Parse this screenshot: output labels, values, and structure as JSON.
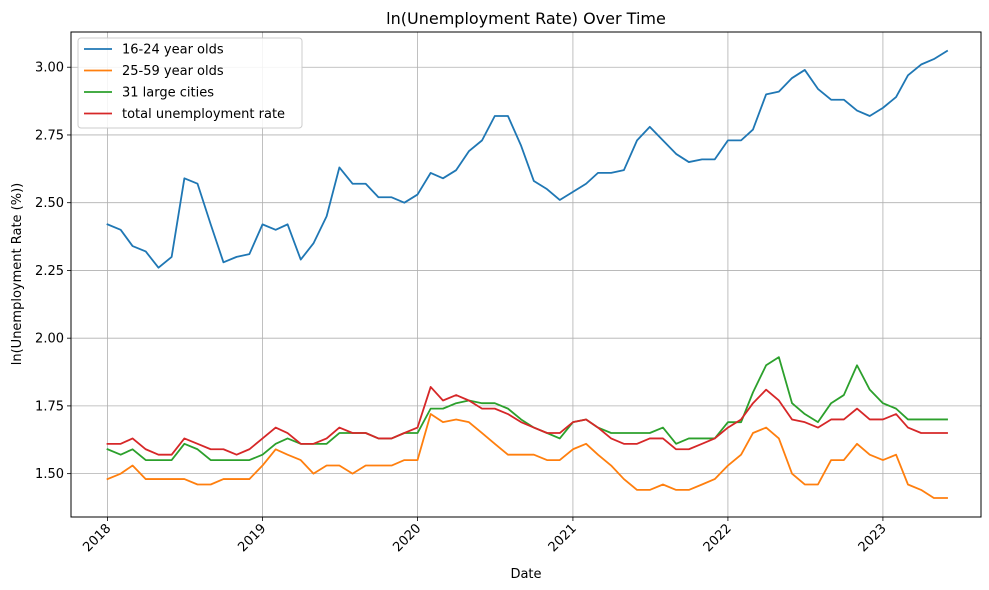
{
  "chart_data": {
    "type": "line",
    "title": "ln(Unemployment Rate) Over Time",
    "xlabel": "Date",
    "ylabel": "ln(Unemployment Rate (%))",
    "x_axis_type": "date",
    "xlim": [
      "2017-10-07",
      "2023-08-20"
    ],
    "ylim": [
      1.34,
      3.13
    ],
    "x_ticks": [
      "2018",
      "2019",
      "2020",
      "2021",
      "2022",
      "2023"
    ],
    "x_tick_rotation": 45,
    "y_ticks": [
      "1.50",
      "1.75",
      "2.00",
      "2.25",
      "2.50",
      "2.75",
      "3.00"
    ],
    "grid": true,
    "legend_position": "top-left",
    "x": [
      "2018-01",
      "2018-02",
      "2018-03",
      "2018-04",
      "2018-05",
      "2018-06",
      "2018-07",
      "2018-08",
      "2018-09",
      "2018-10",
      "2018-11",
      "2018-12",
      "2019-01",
      "2019-02",
      "2019-03",
      "2019-04",
      "2019-05",
      "2019-06",
      "2019-07",
      "2019-08",
      "2019-09",
      "2019-10",
      "2019-11",
      "2019-12",
      "2020-01",
      "2020-02",
      "2020-03",
      "2020-04",
      "2020-05",
      "2020-06",
      "2020-07",
      "2020-08",
      "2020-09",
      "2020-10",
      "2020-11",
      "2020-12",
      "2021-01",
      "2021-02",
      "2021-03",
      "2021-04",
      "2021-05",
      "2021-06",
      "2021-07",
      "2021-08",
      "2021-09",
      "2021-10",
      "2021-11",
      "2021-12",
      "2022-01",
      "2022-02",
      "2022-03",
      "2022-04",
      "2022-05",
      "2022-06",
      "2022-07",
      "2022-08",
      "2022-09",
      "2022-10",
      "2022-11",
      "2022-12",
      "2023-01",
      "2023-02",
      "2023-03",
      "2023-04",
      "2023-05",
      "2023-06"
    ],
    "series": [
      {
        "name": "16-24 year olds",
        "color": "#1f77b4",
        "values": [
          2.42,
          2.4,
          2.34,
          2.32,
          2.26,
          2.3,
          2.59,
          2.57,
          2.42,
          2.28,
          2.3,
          2.31,
          2.42,
          2.4,
          2.42,
          2.29,
          2.35,
          2.45,
          2.63,
          2.57,
          2.57,
          2.52,
          2.52,
          2.5,
          2.53,
          2.61,
          2.59,
          2.62,
          2.69,
          2.73,
          2.82,
          2.82,
          2.71,
          2.58,
          2.55,
          2.51,
          2.54,
          2.57,
          2.61,
          2.61,
          2.62,
          2.73,
          2.78,
          2.73,
          2.68,
          2.65,
          2.66,
          2.66,
          2.73,
          2.73,
          2.77,
          2.9,
          2.91,
          2.96,
          2.99,
          2.92,
          2.88,
          2.88,
          2.84,
          2.82,
          2.85,
          2.89,
          2.97,
          3.01,
          3.03,
          3.06
        ]
      },
      {
        "name": "25-59 year olds",
        "color": "#ff7f0e",
        "values": [
          1.48,
          1.5,
          1.53,
          1.48,
          1.48,
          1.48,
          1.48,
          1.46,
          1.46,
          1.48,
          1.48,
          1.48,
          1.53,
          1.59,
          1.57,
          1.55,
          1.5,
          1.53,
          1.53,
          1.5,
          1.53,
          1.53,
          1.53,
          1.55,
          1.55,
          1.72,
          1.69,
          1.7,
          1.69,
          1.65,
          1.61,
          1.57,
          1.57,
          1.57,
          1.55,
          1.55,
          1.59,
          1.61,
          1.57,
          1.53,
          1.48,
          1.44,
          1.44,
          1.46,
          1.44,
          1.44,
          1.46,
          1.48,
          1.53,
          1.57,
          1.65,
          1.67,
          1.63,
          1.5,
          1.46,
          1.46,
          1.55,
          1.55,
          1.61,
          1.57,
          1.55,
          1.57,
          1.46,
          1.44,
          1.41,
          1.41
        ]
      },
      {
        "name": "31 large cities",
        "color": "#2ca02c",
        "values": [
          1.59,
          1.57,
          1.59,
          1.55,
          1.55,
          1.55,
          1.61,
          1.59,
          1.55,
          1.55,
          1.55,
          1.55,
          1.57,
          1.61,
          1.63,
          1.61,
          1.61,
          1.61,
          1.65,
          1.65,
          1.65,
          1.63,
          1.63,
          1.65,
          1.65,
          1.74,
          1.74,
          1.76,
          1.77,
          1.76,
          1.76,
          1.74,
          1.7,
          1.67,
          1.65,
          1.63,
          1.69,
          1.7,
          1.67,
          1.65,
          1.65,
          1.65,
          1.65,
          1.67,
          1.61,
          1.63,
          1.63,
          1.63,
          1.69,
          1.69,
          1.8,
          1.9,
          1.93,
          1.76,
          1.72,
          1.69,
          1.76,
          1.79,
          1.9,
          1.81,
          1.76,
          1.74,
          1.7,
          1.7,
          1.7,
          1.7
        ]
      },
      {
        "name": "total unemployment rate",
        "color": "#d62728",
        "values": [
          1.61,
          1.61,
          1.63,
          1.59,
          1.57,
          1.57,
          1.63,
          1.61,
          1.59,
          1.59,
          1.57,
          1.59,
          1.63,
          1.67,
          1.65,
          1.61,
          1.61,
          1.63,
          1.67,
          1.65,
          1.65,
          1.63,
          1.63,
          1.65,
          1.67,
          1.82,
          1.77,
          1.79,
          1.77,
          1.74,
          1.74,
          1.72,
          1.69,
          1.67,
          1.65,
          1.65,
          1.69,
          1.7,
          1.67,
          1.63,
          1.61,
          1.61,
          1.63,
          1.63,
          1.59,
          1.59,
          1.61,
          1.63,
          1.67,
          1.7,
          1.76,
          1.81,
          1.77,
          1.7,
          1.69,
          1.67,
          1.7,
          1.7,
          1.74,
          1.7,
          1.7,
          1.72,
          1.67,
          1.65,
          1.65,
          1.65
        ]
      }
    ]
  }
}
